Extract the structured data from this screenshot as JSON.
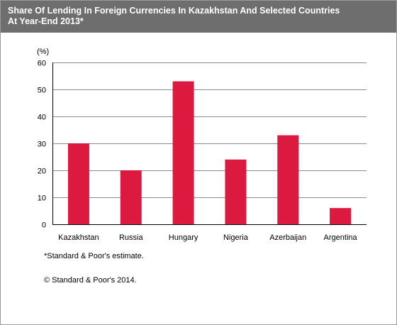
{
  "header": {
    "title_line1": "Share Of Lending In Foreign Currencies In Kazakhstan And Selected Countries",
    "title_line2": "At Year-End 2013*"
  },
  "chart_data": {
    "type": "bar",
    "title": "Share Of Lending In Foreign Currencies In Kazakhstan And Selected Countries At Year-End 2013*",
    "unit_label": "(%)",
    "categories": [
      "Kazakhstan",
      "Russia",
      "Hungary",
      "Nigeria",
      "Azerbaijan",
      "Argentina"
    ],
    "values": [
      30,
      20,
      53,
      24,
      33,
      6
    ],
    "ylim": [
      0,
      60
    ],
    "yticks": [
      0,
      10,
      20,
      30,
      40,
      50,
      60
    ],
    "grid": true,
    "bar_color": "#dc1a40"
  },
  "footnote": "*Standard & Poor's estimate.",
  "copyright": "© Standard & Poor's 2014."
}
